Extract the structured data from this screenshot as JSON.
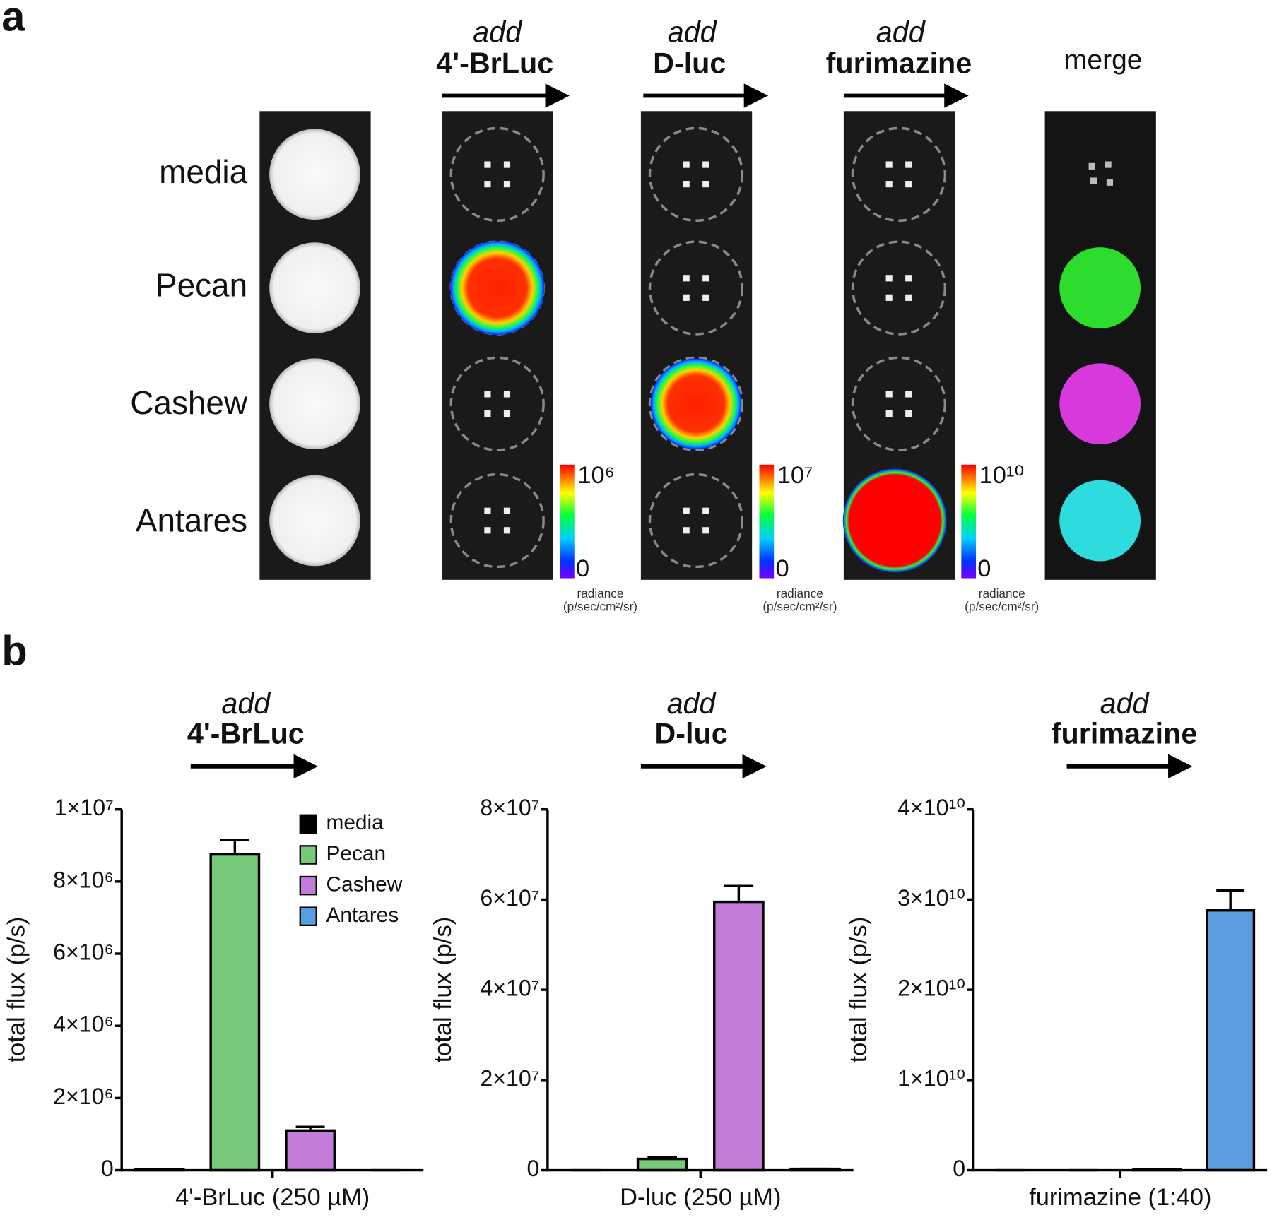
{
  "panel_a": {
    "label": "a",
    "columns": [
      {
        "add": "add",
        "reagent": "4'-BrLuc"
      },
      {
        "add": "add",
        "reagent": "D-luc"
      },
      {
        "add": "add",
        "reagent": "furimazine"
      }
    ],
    "merge": "merge",
    "rows": [
      "media",
      "Pecan",
      "Cashew",
      "Antares"
    ],
    "colorbars": [
      {
        "max": "10⁶",
        "min": "0",
        "title": "radiance",
        "units": "(p/sec/cm²/sr)"
      },
      {
        "max": "10⁷",
        "min": "0",
        "title": "radiance",
        "units": "(p/sec/cm²/sr)"
      },
      {
        "max": "10¹⁰",
        "min": "0",
        "title": "radiance",
        "units": "(p/sec/cm²/sr)"
      }
    ]
  },
  "panel_b_label": "b",
  "chart_data": [
    {
      "type": "bar",
      "annotations": [
        "add",
        "4'-BrLuc"
      ],
      "xlabel": "4'-BrLuc (250 µM)",
      "ylabel": "total flux (p/s)",
      "legend": "upper right",
      "series": [
        {
          "name": "media",
          "color": "#000000",
          "values": [
            20000
          ],
          "errors": [
            0
          ]
        },
        {
          "name": "Pecan",
          "color": "#77c97a",
          "values": [
            8750000
          ],
          "errors": [
            400000
          ]
        },
        {
          "name": "Cashew",
          "color": "#c37bd9",
          "values": [
            1100000
          ],
          "errors": [
            100000
          ]
        },
        {
          "name": "Antares",
          "color": "#5b9ee0",
          "values": [
            0
          ],
          "errors": [
            0
          ]
        }
      ],
      "ylim": [
        0,
        10000000
      ],
      "yticks": [
        0,
        {
          "value": 2000000,
          "label": "2×10⁶"
        },
        {
          "value": 4000000,
          "label": "4×10⁶"
        },
        {
          "value": 6000000,
          "label": "6×10⁶"
        },
        {
          "value": 8000000,
          "label": "8×10⁶"
        },
        {
          "value": 10000000,
          "label": "1×10⁷"
        }
      ]
    },
    {
      "type": "bar",
      "annotations": [
        "add",
        "D-luc"
      ],
      "xlabel": "D-luc (250 µM)",
      "ylabel": "total flux (p/s)",
      "series": [
        {
          "color": "#000000",
          "values": [
            0
          ],
          "errors": [
            0
          ]
        },
        {
          "color": "#77c97a",
          "values": [
            2500000
          ],
          "errors": [
            400000
          ]
        },
        {
          "color": "#c37bd9",
          "values": [
            59500000
          ],
          "errors": [
            3500000
          ]
        },
        {
          "color": "#5b9ee0",
          "values": [
            300000
          ],
          "errors": [
            0
          ]
        }
      ],
      "ylim": [
        0,
        80000000
      ],
      "yticks": [
        0,
        {
          "value": 20000000,
          "label": "2×10⁷"
        },
        {
          "value": 40000000,
          "label": "4×10⁷"
        },
        {
          "value": 60000000,
          "label": "6×10⁷"
        },
        {
          "value": 80000000,
          "label": "8×10⁷"
        }
      ]
    },
    {
      "type": "bar",
      "annotations": [
        "add",
        "furimazine"
      ],
      "xlabel": "furimazine (1:40)",
      "ylabel": "total flux (p/s)",
      "series": [
        {
          "color": "#000000",
          "values": [
            0
          ],
          "errors": [
            0
          ]
        },
        {
          "color": "#77c97a",
          "values": [
            0
          ],
          "errors": [
            0
          ]
        },
        {
          "color": "#c37bd9",
          "values": [
            100000000
          ],
          "errors": [
            0
          ]
        },
        {
          "color": "#5b9ee0",
          "values": [
            28800000000
          ],
          "errors": [
            2200000000
          ]
        }
      ],
      "ylim": [
        0,
        40000000000
      ],
      "yticks": [
        0,
        {
          "value": 10000000000,
          "label": "1×10¹⁰"
        },
        {
          "value": 20000000000,
          "label": "2×10¹⁰"
        },
        {
          "value": 30000000000,
          "label": "3×10¹⁰"
        },
        {
          "value": 40000000000,
          "label": "4×10¹⁰"
        }
      ]
    }
  ]
}
